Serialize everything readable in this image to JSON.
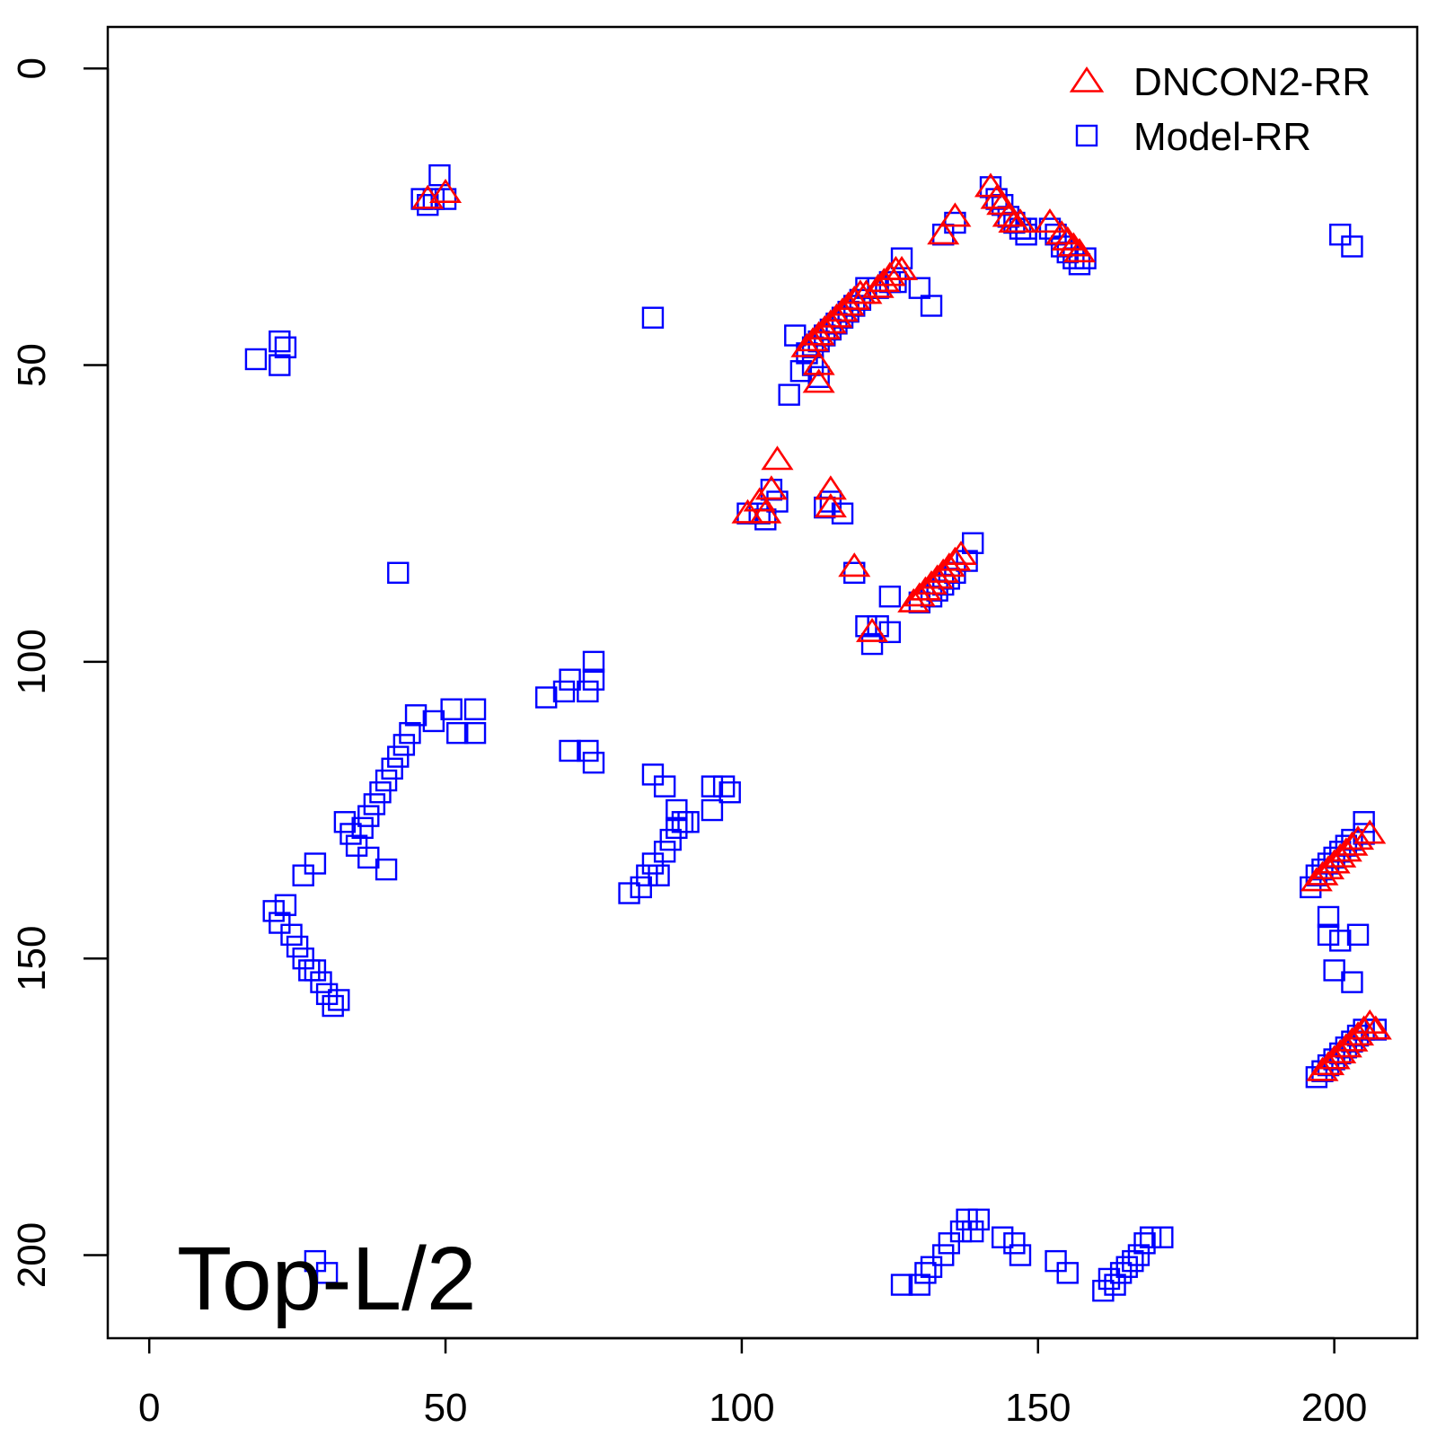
{
  "chart_data": {
    "type": "scatter",
    "title": "",
    "xlabel": "",
    "ylabel": "",
    "xlim": [
      -7,
      214
    ],
    "ylim": [
      214,
      -7
    ],
    "y_axis_inverted": true,
    "grid": false,
    "legend_position": "top-right",
    "x_ticks": [
      0,
      50,
      100,
      150,
      200
    ],
    "y_ticks": [
      0,
      50,
      100,
      150,
      200
    ],
    "annotation": "Top-L/2",
    "series": [
      {
        "name": "Model-RR",
        "marker": "square",
        "color": "#0000ff",
        "points": [
          [
            49,
            18
          ],
          [
            46,
            22
          ],
          [
            48,
            22
          ],
          [
            47,
            23
          ],
          [
            50,
            22
          ],
          [
            18,
            49
          ],
          [
            22,
            46
          ],
          [
            22,
            50
          ],
          [
            23,
            47
          ],
          [
            85,
            42
          ],
          [
            142,
            20
          ],
          [
            143,
            22
          ],
          [
            144,
            23
          ],
          [
            145,
            25
          ],
          [
            146,
            26
          ],
          [
            147,
            27
          ],
          [
            148,
            27
          ],
          [
            148,
            28
          ],
          [
            152,
            27
          ],
          [
            153,
            28
          ],
          [
            154,
            30
          ],
          [
            155,
            31
          ],
          [
            156,
            32
          ],
          [
            157,
            33
          ],
          [
            158,
            32
          ],
          [
            201,
            28
          ],
          [
            203,
            30
          ],
          [
            134,
            28
          ],
          [
            136,
            26
          ],
          [
            127,
            32
          ],
          [
            130,
            37
          ],
          [
            132,
            40
          ],
          [
            123,
            37
          ],
          [
            125,
            36
          ],
          [
            126,
            36
          ],
          [
            121,
            37
          ],
          [
            120,
            39
          ],
          [
            119,
            40
          ],
          [
            118,
            41
          ],
          [
            117,
            42
          ],
          [
            116,
            43
          ],
          [
            115,
            44
          ],
          [
            114,
            45
          ],
          [
            113,
            46
          ],
          [
            112,
            47
          ],
          [
            111,
            48
          ],
          [
            109,
            45
          ],
          [
            112,
            50
          ],
          [
            113,
            52
          ],
          [
            110,
            51
          ],
          [
            108,
            55
          ],
          [
            105,
            71
          ],
          [
            106,
            73
          ],
          [
            103,
            75
          ],
          [
            104,
            76
          ],
          [
            101,
            75
          ],
          [
            114,
            74
          ],
          [
            115,
            73
          ],
          [
            117,
            75
          ],
          [
            119,
            85
          ],
          [
            125,
            89
          ],
          [
            121,
            94
          ],
          [
            123,
            94
          ],
          [
            125,
            95
          ],
          [
            122,
            97
          ],
          [
            130,
            90
          ],
          [
            132,
            89
          ],
          [
            133,
            88
          ],
          [
            134,
            87
          ],
          [
            135,
            86
          ],
          [
            136,
            85
          ],
          [
            138,
            83
          ],
          [
            139,
            80
          ],
          [
            42,
            85
          ],
          [
            45,
            109
          ],
          [
            48,
            110
          ],
          [
            51,
            108
          ],
          [
            55,
            108
          ],
          [
            52,
            112
          ],
          [
            55,
            112
          ],
          [
            44,
            112
          ],
          [
            43,
            114
          ],
          [
            42,
            116
          ],
          [
            41,
            118
          ],
          [
            40,
            120
          ],
          [
            39,
            122
          ],
          [
            38,
            124
          ],
          [
            37,
            126
          ],
          [
            36,
            128
          ],
          [
            33,
            127
          ],
          [
            34,
            129
          ],
          [
            35,
            131
          ],
          [
            37,
            133
          ],
          [
            40,
            135
          ],
          [
            28,
            134
          ],
          [
            26,
            136
          ],
          [
            21,
            142
          ],
          [
            22,
            144
          ],
          [
            23,
            141
          ],
          [
            24,
            146
          ],
          [
            25,
            148
          ],
          [
            26,
            150
          ],
          [
            27,
            152
          ],
          [
            28,
            152
          ],
          [
            29,
            154
          ],
          [
            30,
            156
          ],
          [
            31,
            158
          ],
          [
            32,
            157
          ],
          [
            67,
            106
          ],
          [
            70,
            105
          ],
          [
            71,
            103
          ],
          [
            75,
            100
          ],
          [
            74,
            105
          ],
          [
            75,
            103
          ],
          [
            71,
            115
          ],
          [
            74,
            115
          ],
          [
            75,
            117
          ],
          [
            85,
            119
          ],
          [
            87,
            121
          ],
          [
            89,
            125
          ],
          [
            95,
            121
          ],
          [
            95,
            125
          ],
          [
            97,
            121
          ],
          [
            98,
            122
          ],
          [
            81,
            139
          ],
          [
            83,
            138
          ],
          [
            84,
            136
          ],
          [
            85,
            134
          ],
          [
            86,
            136
          ],
          [
            87,
            132
          ],
          [
            88,
            130
          ],
          [
            89,
            128
          ],
          [
            90,
            127
          ],
          [
            91,
            127
          ],
          [
            196,
            138
          ],
          [
            197,
            136
          ],
          [
            198,
            135
          ],
          [
            199,
            134
          ],
          [
            200,
            133
          ],
          [
            201,
            132
          ],
          [
            202,
            131
          ],
          [
            203,
            130
          ],
          [
            205,
            127
          ],
          [
            205,
            129
          ],
          [
            199,
            143
          ],
          [
            199,
            146
          ],
          [
            201,
            147
          ],
          [
            204,
            146
          ],
          [
            200,
            152
          ],
          [
            203,
            154
          ],
          [
            197,
            170
          ],
          [
            198,
            169
          ],
          [
            199,
            168
          ],
          [
            200,
            167
          ],
          [
            201,
            166
          ],
          [
            202,
            165
          ],
          [
            203,
            164
          ],
          [
            204,
            163
          ],
          [
            205,
            162
          ],
          [
            207,
            162
          ],
          [
            137,
            196
          ],
          [
            138,
            194
          ],
          [
            139,
            196
          ],
          [
            140,
            194
          ],
          [
            135,
            198
          ],
          [
            134,
            200
          ],
          [
            132,
            202
          ],
          [
            131,
            203
          ],
          [
            130,
            205
          ],
          [
            127,
            205
          ],
          [
            144,
            197
          ],
          [
            146,
            198
          ],
          [
            147,
            200
          ],
          [
            153,
            201
          ],
          [
            155,
            203
          ],
          [
            161,
            206
          ],
          [
            162,
            204
          ],
          [
            163,
            205
          ],
          [
            164,
            203
          ],
          [
            165,
            202
          ],
          [
            166,
            201
          ],
          [
            167,
            200
          ],
          [
            168,
            198
          ],
          [
            169,
            197
          ],
          [
            171,
            197
          ],
          [
            28,
            201
          ],
          [
            30,
            203
          ]
        ]
      },
      {
        "name": "DNCON2-RR",
        "marker": "triangle",
        "color": "#ff0000",
        "points": [
          [
            47,
            22
          ],
          [
            50,
            21
          ],
          [
            142,
            20
          ],
          [
            143,
            22
          ],
          [
            144,
            23
          ],
          [
            145,
            25
          ],
          [
            146,
            26
          ],
          [
            147,
            26
          ],
          [
            152,
            26
          ],
          [
            154,
            28
          ],
          [
            155,
            29
          ],
          [
            156,
            30
          ],
          [
            157,
            31
          ],
          [
            134,
            28
          ],
          [
            136,
            25
          ],
          [
            111,
            47
          ],
          [
            112,
            46
          ],
          [
            113,
            45
          ],
          [
            114,
            44
          ],
          [
            115,
            43
          ],
          [
            116,
            42
          ],
          [
            117,
            41
          ],
          [
            118,
            40
          ],
          [
            119,
            39
          ],
          [
            120,
            38
          ],
          [
            121,
            38
          ],
          [
            123,
            37
          ],
          [
            124,
            36
          ],
          [
            125,
            35
          ],
          [
            126,
            34
          ],
          [
            127,
            34
          ],
          [
            113,
            50
          ],
          [
            113,
            53
          ],
          [
            106,
            66
          ],
          [
            105,
            71
          ],
          [
            103,
            73
          ],
          [
            101,
            75
          ],
          [
            104,
            75
          ],
          [
            115,
            71
          ],
          [
            115,
            74
          ],
          [
            119,
            84
          ],
          [
            122,
            95
          ],
          [
            129,
            90
          ],
          [
            130,
            89
          ],
          [
            131,
            88
          ],
          [
            132,
            87
          ],
          [
            133,
            86
          ],
          [
            134,
            85
          ],
          [
            135,
            84
          ],
          [
            136,
            83
          ],
          [
            137,
            82
          ],
          [
            197,
            137
          ],
          [
            198,
            136
          ],
          [
            199,
            135
          ],
          [
            200,
            134
          ],
          [
            201,
            133
          ],
          [
            202,
            132
          ],
          [
            203,
            131
          ],
          [
            204,
            130
          ],
          [
            206,
            129
          ],
          [
            198,
            169
          ],
          [
            199,
            168
          ],
          [
            200,
            167
          ],
          [
            201,
            166
          ],
          [
            202,
            165
          ],
          [
            203,
            164
          ],
          [
            204,
            163
          ],
          [
            205,
            162
          ],
          [
            206,
            161
          ],
          [
            207,
            162
          ]
        ]
      }
    ]
  }
}
